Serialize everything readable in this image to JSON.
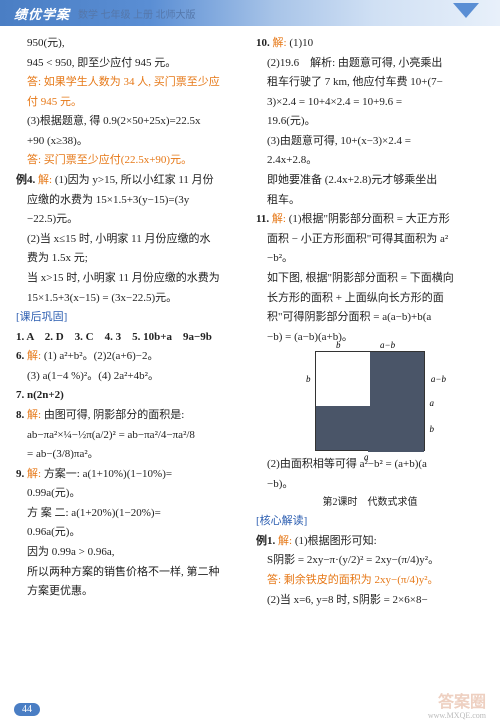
{
  "header": {
    "title": "绩优学案",
    "sub": "数学 七年级 上册 北师大版"
  },
  "left": [
    {
      "t": "950(元),",
      "i": 1
    },
    {
      "t": "945 < 950, 即至少应付 945 元。",
      "i": 1
    },
    {
      "t": "答: 如果学生人数为 34 人, 买门票至少应",
      "i": 1,
      "c": "orange"
    },
    {
      "t": "付 945 元。",
      "i": 1,
      "c": "orange"
    },
    {
      "t": "(3)根据题意, 得 0.9(2×50+25x)=22.5x",
      "i": 1
    },
    {
      "t": "+90 (x≥38)。",
      "i": 1
    },
    {
      "t": "答: 买门票至少应付(22.5x+90)元。",
      "i": 1,
      "c": "orange"
    },
    {
      "t": "例4. 解: (1)因为 y>15, 所以小红家 11 月份",
      "b": 1
    },
    {
      "t": "应缴的水费为 15×1.5+3(y−15)=(3y",
      "i": 1
    },
    {
      "t": "−22.5)元。",
      "i": 1
    },
    {
      "t": "(2)当 x≤15 时, 小明家 11 月份应缴的水",
      "i": 1
    },
    {
      "t": "费为 1.5x 元;",
      "i": 1
    },
    {
      "t": "当 x>15 时, 小明家 11 月份应缴的水费为",
      "i": 1
    },
    {
      "t": "15×1.5+3(x−15) = (3x−22.5)元。",
      "i": 1
    },
    {
      "t": "[课后巩固]",
      "c": "blue"
    },
    {
      "t": "1. A　2. D　3. C　4. 3　5. 10b+a　9a−9b",
      "b": 1
    },
    {
      "t": "6. 解: (1) a²+b²。(2)2(a+6)−2。",
      "b": 1
    },
    {
      "t": "(3) a(1−4 %)²。(4) 2a²+4b²。",
      "i": 1
    },
    {
      "t": "7. n(2n+2)",
      "b": 1
    },
    {
      "t": "8. 解: 由图可得, 阴影部分的面积是:",
      "b": 1
    },
    {
      "t": "ab−πa²×¼−½π(a/2)² = ab−πa²/4−πa²/8",
      "i": 1
    },
    {
      "t": "= ab−(3/8)πa²。",
      "i": 1
    },
    {
      "t": "9. 解: 方案一: a(1+10%)(1−10%)=",
      "b": 1
    },
    {
      "t": "0.99a(元)。",
      "i": 1
    },
    {
      "t": "方 案 二: a(1+20%)(1−20%)=",
      "i": 1
    },
    {
      "t": "0.96a(元)。",
      "i": 1
    },
    {
      "t": "因为 0.99a > 0.96a,",
      "i": 1
    },
    {
      "t": "所以两种方案的销售价格不一样, 第二种",
      "i": 1
    },
    {
      "t": "方案更优惠。",
      "i": 1
    }
  ],
  "right": [
    {
      "t": "10. 解: (1)10",
      "b": 1
    },
    {
      "t": "(2)19.6　解析: 由题意可得, 小亮乘出",
      "i": 1
    },
    {
      "t": "租车行驶了 7 km, 他应付车费 10+(7−",
      "i": 1
    },
    {
      "t": "3)×2.4 = 10+4×2.4 = 10+9.6 =",
      "i": 1
    },
    {
      "t": "19.6(元)。",
      "i": 1
    },
    {
      "t": "(3)由题意可得, 10+(x−3)×2.4 =",
      "i": 1
    },
    {
      "t": "2.4x+2.8。",
      "i": 1
    },
    {
      "t": "即她要准备 (2.4x+2.8)元才够乘坐出",
      "i": 1
    },
    {
      "t": "租车。",
      "i": 1
    },
    {
      "t": "11. 解: (1)根据\"阴影部分面积 = 大正方形",
      "b": 1
    },
    {
      "t": "面积 − 小正方形面积\"可得其面积为 a²",
      "i": 1
    },
    {
      "t": "−b²。",
      "i": 1
    },
    {
      "t": "如下图, 根据\"阴影部分面积 = 下面横向",
      "i": 1
    },
    {
      "t": "长方形的面积 + 上面纵向长方形的面",
      "i": 1
    },
    {
      "t": "积\"可得阴影部分面积 = a(a−b)+b(a",
      "i": 1
    },
    {
      "t": "−b) = (a−b)(a+b)。",
      "i": 1
    }
  ],
  "right2": [
    {
      "t": "(2)由面积相等可得 a²−b² = (a+b)(a",
      "i": 1
    },
    {
      "t": "−b)。",
      "i": 1
    },
    {
      "t": "第2课时　代数式求值",
      "c": "center"
    },
    {
      "t": "[核心解读]",
      "c": "blue"
    },
    {
      "t": "例1. 解: (1)根据图形可知:",
      "b": 1
    },
    {
      "t": "S阴影 = 2xy−π·(y/2)² = 2xy−(π/4)y²。",
      "i": 1
    },
    {
      "t": "答: 剩余铁皮的面积为 2xy−(π/4)y²。",
      "i": 1,
      "c": "orange"
    },
    {
      "t": "(2)当 x=6, y=8 时, S阴影 = 2×6×8−",
      "i": 1
    }
  ],
  "diagram": {
    "l_top_out": "b",
    "l_top_mid": "a−b",
    "l_left": "b",
    "l_bot": "a",
    "l_right_top": "a−b",
    "l_right": "a",
    "l_right_bot": "b"
  },
  "page": "44",
  "wm": "答案圈",
  "wm2": "www.MXQE.com"
}
